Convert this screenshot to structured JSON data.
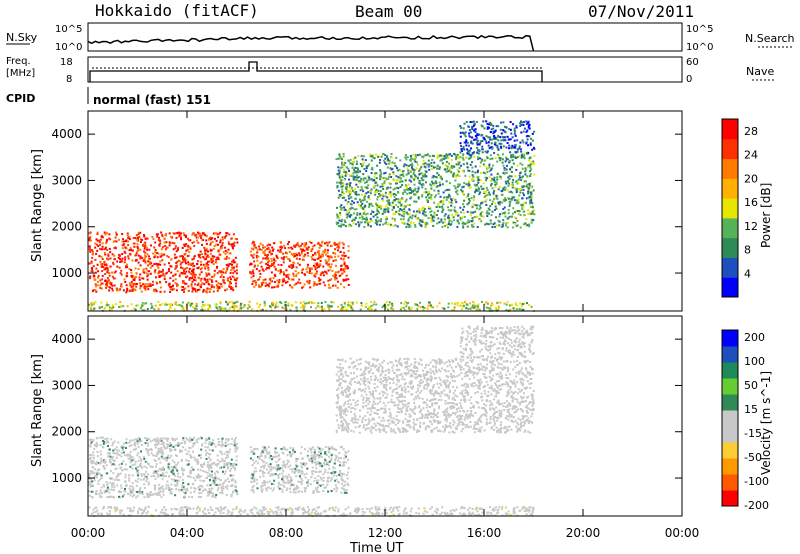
{
  "header": {
    "title": "Hokkaido (fitACF)",
    "beam": "Beam 00",
    "date": "07/Nov/2011"
  },
  "strip_labels": {
    "nsky": "N.Sky",
    "freq": "Freq.",
    "freq_unit": "[MHz]",
    "cpid": "CPID",
    "nsearch": "N.Search",
    "nave": "Nave",
    "noise_ticks": [
      "10^5",
      "10^0"
    ],
    "freq_ticks": [
      "18",
      "8"
    ],
    "nave_ticks": [
      "60",
      "0"
    ],
    "cpid_text": "normal (fast) 151"
  },
  "colors": {
    "power_scale": [
      "#0000ff",
      "#1e4fbf",
      "#2e8b57",
      "#57b35a",
      "#e6e600",
      "#ffb000",
      "#ff7a00",
      "#ff3000",
      "#ff0000"
    ],
    "velocity_scale": [
      "#ff0000",
      "#ff5a00",
      "#ff9900",
      "#ffcc33",
      "#c8c8c8",
      "#c8c8c8",
      "#2e8b57",
      "#66cc33",
      "#1e8a5a",
      "#1e4fbf",
      "#0000ff"
    ]
  },
  "chart_data": [
    {
      "type": "heatmap",
      "title": "",
      "xlabel": "",
      "ylabel": "Slant Range [km]",
      "xlim": [
        0,
        24
      ],
      "ylim": [
        180,
        4500
      ],
      "x_ticks": [],
      "y_ticks": [
        "1000",
        "2000",
        "3000",
        "4000"
      ],
      "colorbar": {
        "label": "Power [dB]",
        "ticks": [
          "4",
          "8",
          "12",
          "16",
          "20",
          "24",
          "28"
        ],
        "range": [
          0,
          30
        ]
      },
      "echo_regions": [
        {
          "from_ut": 0.0,
          "to_ut": 6.0,
          "range_min_km": 600,
          "range_max_km": 1900,
          "value": 26
        },
        {
          "from_ut": 6.5,
          "to_ut": 10.5,
          "range_min_km": 700,
          "range_max_km": 1700,
          "value": 25
        },
        {
          "from_ut": 10.0,
          "to_ut": 18.0,
          "range_min_km": 2000,
          "range_max_km": 3600,
          "value": 10
        },
        {
          "from_ut": 15.0,
          "to_ut": 18.0,
          "range_min_km": 3600,
          "range_max_km": 4300,
          "value": 5
        },
        {
          "from_ut": 0.0,
          "to_ut": 18.0,
          "range_min_km": 200,
          "range_max_km": 400,
          "value": 14
        }
      ]
    },
    {
      "type": "heatmap",
      "title": "",
      "xlabel": "Time UT",
      "ylabel": "Slant Range [km]",
      "xlim": [
        0,
        24
      ],
      "ylim": [
        180,
        4500
      ],
      "x_ticks": [
        "00:00",
        "04:00",
        "08:00",
        "12:00",
        "16:00",
        "20:00",
        "00:00"
      ],
      "y_ticks": [
        "1000",
        "2000",
        "3000",
        "4000"
      ],
      "colorbar": {
        "label": "Velocity [m s^-1]",
        "ticks": [
          "200",
          "100",
          "50",
          "15",
          "-15",
          "-50",
          "-100",
          "-200"
        ],
        "range": [
          -250,
          250
        ]
      },
      "echo_regions": [
        {
          "from_ut": 0.0,
          "to_ut": 6.0,
          "range_min_km": 600,
          "range_max_km": 1900,
          "value": 0
        },
        {
          "from_ut": 6.5,
          "to_ut": 10.5,
          "range_min_km": 700,
          "range_max_km": 1700,
          "value": 0
        },
        {
          "from_ut": 10.0,
          "to_ut": 18.0,
          "range_min_km": 2000,
          "range_max_km": 3600,
          "value": -20
        },
        {
          "from_ut": 15.0,
          "to_ut": 18.0,
          "range_min_km": 3600,
          "range_max_km": 4300,
          "value": -30
        },
        {
          "from_ut": 0.0,
          "to_ut": 18.0,
          "range_min_km": 200,
          "range_max_km": 400,
          "value": -40
        }
      ]
    }
  ]
}
